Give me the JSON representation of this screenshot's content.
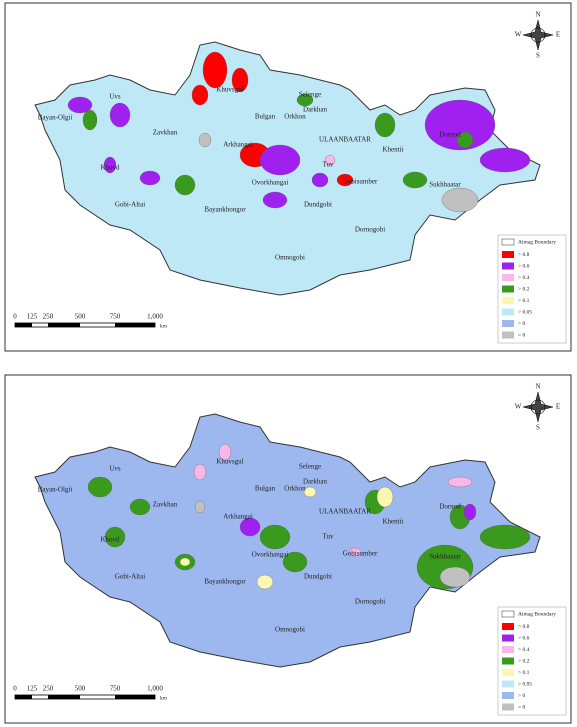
{
  "provinces": [
    "Bayan-Olgii",
    "Uvs",
    "Zavkhan",
    "Khovd",
    "Gobi-Altai",
    "Bayankhongor",
    "Arkhangai",
    "Bulgan",
    "Orkhon",
    "Selenge",
    "Darkhan",
    "Khuvsgul",
    "ULAANBAATAR",
    "Tuv",
    "Khentii",
    "Dornod",
    "Sukhbaatar",
    "Dornogobi",
    "Dundgobi",
    "Ovorkhangai",
    "Omnogobi",
    "Gobisumber"
  ],
  "legend": {
    "boundary": "Aimag Boundary",
    "classes": [
      {
        "label": "> 0.8",
        "color": "#ff0000"
      },
      {
        "label": "> 0.6",
        "color": "#a020f0"
      },
      {
        "label": "> 0.4",
        "color": "#f7b8e8"
      },
      {
        "label": "> 0.2",
        "color": "#3a9a1e"
      },
      {
        "label": "> 0.1",
        "color": "#fbf7b0"
      },
      {
        "label": "> 0.05",
        "color": "#bfe8f7"
      },
      {
        "label": "> 0",
        "color": "#9db8ef"
      },
      {
        "label": "= 0",
        "color": "#c0c0c0"
      }
    ]
  },
  "scale": {
    "ticks": [
      "0",
      "125",
      "250",
      "500",
      "750",
      "1,000"
    ],
    "unit": "km"
  },
  "compass": {
    "north": "N",
    "east": "E",
    "south": "S",
    "west": "W"
  }
}
